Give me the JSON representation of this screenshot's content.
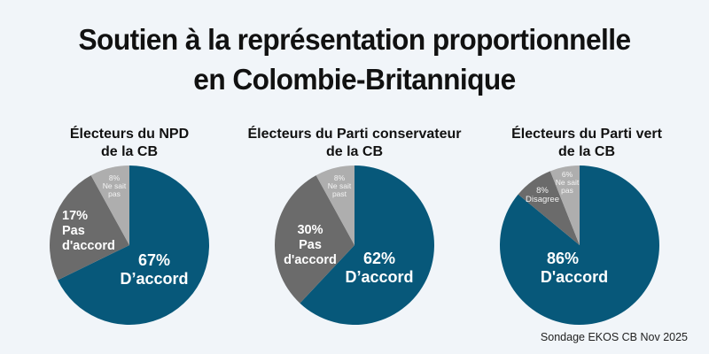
{
  "title": {
    "line1": "Soutien à la représentation proportionnelle",
    "line2": "en Colombie-Britannique"
  },
  "source": "Sondage EKOS CB Nov 2025",
  "colors": {
    "agree": "#07587a",
    "disagree": "#6b6b6b",
    "dont_know": "#aeaeae",
    "background": "#f1f5f9"
  },
  "panels": [
    {
      "title_line1": "Électeurs du NPD",
      "title_line2": "de la CB",
      "agree": {
        "pct": "67%",
        "label": "D’accord"
      },
      "disagree": {
        "pct": "17%",
        "label_line1": "Pas",
        "label_line2": "d'accord"
      },
      "dont_know": {
        "pct": "8%",
        "label_line1": "Ne sait",
        "label_line2": "pas"
      }
    },
    {
      "title_line1": "Électeurs du Parti conservateur",
      "title_line2": "de la CB",
      "agree": {
        "pct": "62%",
        "label": "D’accord"
      },
      "disagree": {
        "pct": "30%",
        "label_line1": "Pas",
        "label_line2": "d'accord"
      },
      "dont_know": {
        "pct": "8%",
        "label_line1": "Ne sait",
        "label_line2": "past"
      }
    },
    {
      "title_line1": "Électeurs du Parti vert",
      "title_line2": "de la CB",
      "agree": {
        "pct": "86%",
        "label": "D'accord"
      },
      "disagree": {
        "pct": "8%",
        "label_line1": "Disagree"
      },
      "dont_know": {
        "pct": "6%",
        "label_line1": "Ne sait",
        "label_line2": "pas"
      }
    }
  ],
  "chart_data": [
    {
      "type": "pie",
      "title": "Électeurs du NPD de la CB",
      "categories": [
        "D’accord",
        "Pas d'accord",
        "Ne sait pas"
      ],
      "values": [
        67,
        17,
        8
      ],
      "colors": [
        "#07587a",
        "#6b6b6b",
        "#aeaeae"
      ]
    },
    {
      "type": "pie",
      "title": "Électeurs du Parti conservateur de la CB",
      "categories": [
        "D’accord",
        "Pas d'accord",
        "Ne sait past"
      ],
      "values": [
        62,
        30,
        8
      ],
      "colors": [
        "#07587a",
        "#6b6b6b",
        "#aeaeae"
      ]
    },
    {
      "type": "pie",
      "title": "Électeurs du Parti vert de la CB",
      "categories": [
        "D'accord",
        "Disagree",
        "Ne sait pas"
      ],
      "values": [
        86,
        8,
        6
      ],
      "colors": [
        "#07587a",
        "#6b6b6b",
        "#aeaeae"
      ]
    }
  ]
}
